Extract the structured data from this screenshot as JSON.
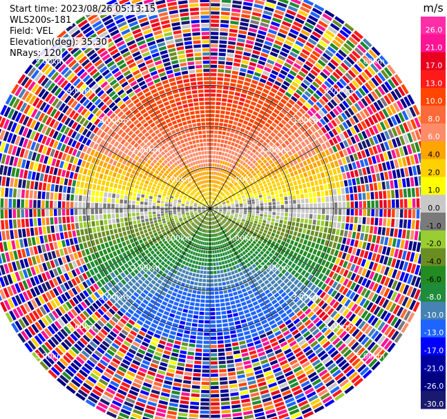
{
  "header": {
    "start_time": "Start time: 2023/08/26 05:13:15",
    "instrument": "WLS200s-181",
    "field": "Field: VEL",
    "elevation": "Elevation(deg): 35.30",
    "nrays": "NRays: 120"
  },
  "colorbar": {
    "unit": "m/s",
    "ticks": [
      "26.0",
      "21.0",
      "17.0",
      "13.0",
      "10.0",
      "8.0",
      "6.0",
      "4.0",
      "2.0",
      "1.0",
      "0.0",
      "-1.0",
      "-2.0",
      "-4.0",
      "-6.0",
      "-8.0",
      "-10.0",
      "-13.0",
      "-17.0",
      "-21.0",
      "-26.0",
      "-30.0"
    ],
    "colors": [
      "#ff2ea6",
      "#ff1493",
      "#e8001e",
      "#ff1a1a",
      "#ff4500",
      "#ff6a3a",
      "#ff8c69",
      "#ffa500",
      "#ffd000",
      "#ffff00",
      "#c8c8c8",
      "#7a7a7a",
      "#9acd32",
      "#6b8e23",
      "#228b22",
      "#1e8c3a",
      "#4682b4",
      "#1e64ff",
      "#0000ff",
      "#0000a0",
      "#000080",
      "#191970"
    ]
  },
  "chart_data": {
    "type": "heatmap",
    "title": "",
    "field": "VEL",
    "unit": "m/s",
    "nrays": 120,
    "elevation_deg": 35.3,
    "range_rings_km": [
      1.0,
      2.0,
      3.0
    ],
    "range_labels": [
      "1.00km",
      "2.00km",
      "3.00km",
      "4.00km",
      "5.00km"
    ],
    "max_range_km": 5.6,
    "valid_range_km": 3.4,
    "wind_description": "Positive velocities (red/orange) toward north, negative (blue/green) toward south; noisy multicolor beyond ~3.4 km",
    "vlim": [
      -30.0,
      26.0
    ]
  }
}
